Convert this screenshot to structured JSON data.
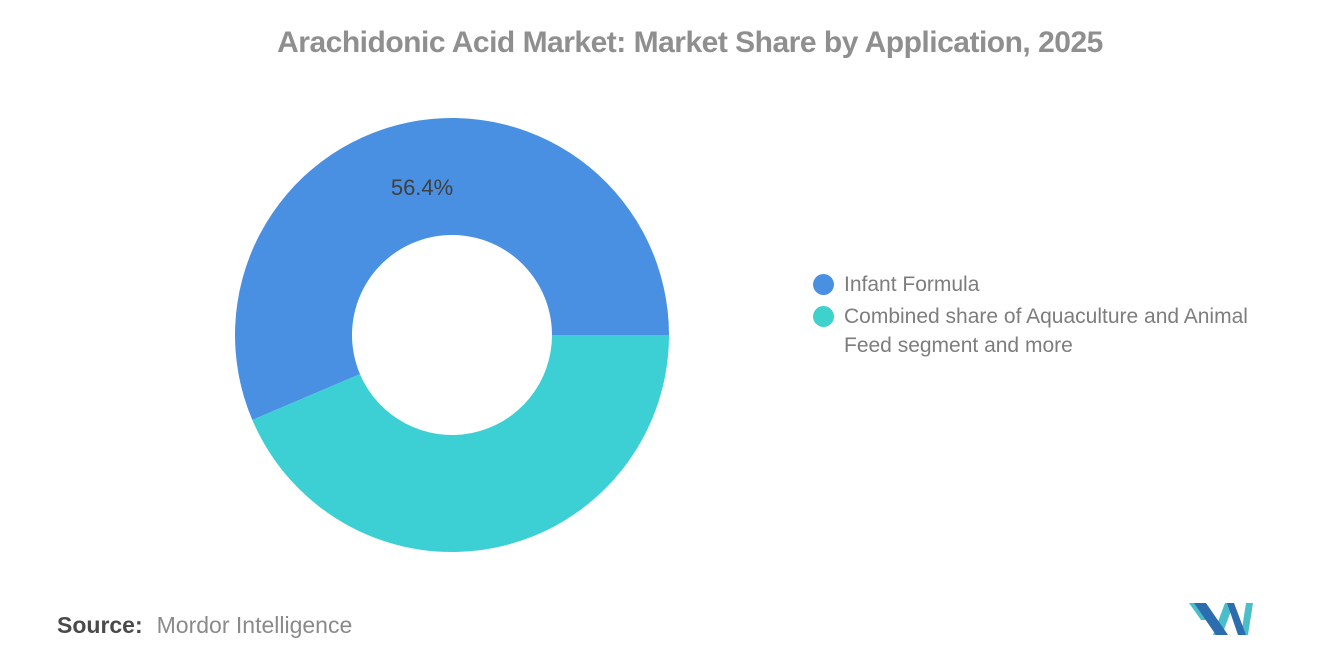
{
  "header": {
    "title": "Arachidonic Acid Market: Market Share by Application, 2025"
  },
  "chart_data": {
    "type": "pie",
    "subtype": "donut",
    "title": "Arachidonic Acid Market: Market Share by Application, 2025",
    "start_angle_deg": -113.04,
    "inner_radius_ratio": 0.46,
    "legend_position": "right",
    "slices": [
      {
        "label": "Infant Formula",
        "value": 56.4,
        "display_value": "56.4%",
        "color": "#4A90E2"
      },
      {
        "label": "Combined share of Aquaculture and Animal Feed segment and more",
        "value": 43.6,
        "display_value": "",
        "color": "#3CCFD4"
      }
    ]
  },
  "legend": {
    "items": [
      {
        "label": "Infant Formula",
        "color": "#4A90E2"
      },
      {
        "label": "Combined share of Aquaculture and Animal Feed segment and more",
        "color": "#3ED2CE"
      }
    ]
  },
  "footer": {
    "source_label": "Source:",
    "source_value": "Mordor Intelligence"
  },
  "logo": {
    "name": "mordor-intelligence-logo",
    "blue": "#2C6DAF",
    "teal": "#4BBFC9"
  }
}
